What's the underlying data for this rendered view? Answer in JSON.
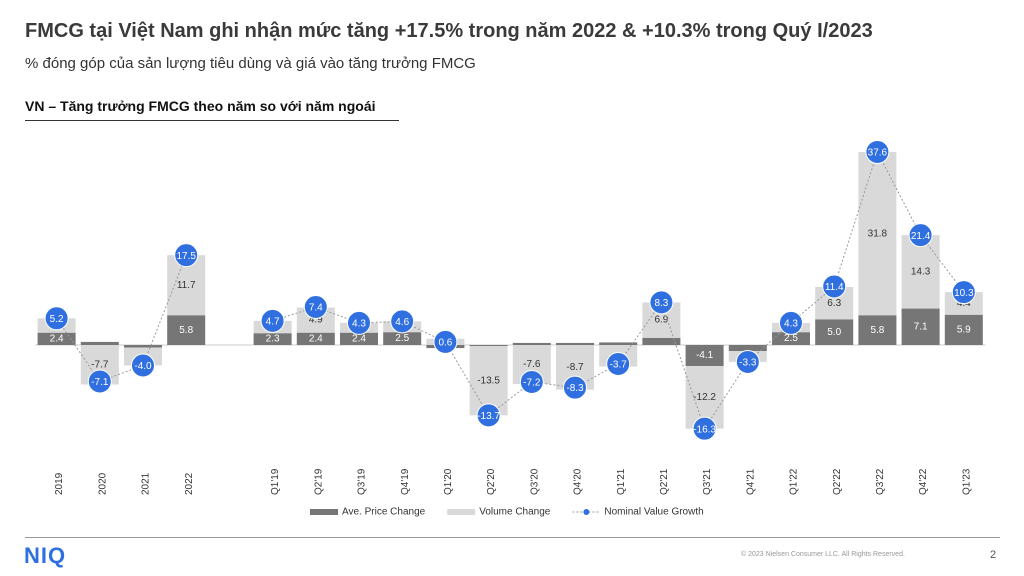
{
  "header": {
    "title": "FMCG tại Việt Nam ghi nhận mức tăng +17.5% trong năm 2022 & +10.3% trong Quý I/2023",
    "subtitle": "% đóng góp của sản lượng tiêu dùng và giá vào tăng trưởng FMCG"
  },
  "chart_data": {
    "type": "bar",
    "stacked": true,
    "title": "VN – Tăng trưởng FMCG theo năm so với năm ngoái",
    "categories": [
      "2019",
      "2020",
      "2021",
      "2022",
      null,
      "Q1'19",
      "Q2'19",
      "Q3'19",
      "Q4'19",
      "Q1'20",
      "Q2'20",
      "Q3'20",
      "Q4'20",
      "Q1'21",
      "Q2'21",
      "Q3'21",
      "Q4'21",
      "Q1'22",
      "Q2'22",
      "Q3'22",
      "Q4'22",
      "Q1'23"
    ],
    "series": [
      {
        "name": "Ave. Price Change",
        "type": "bar",
        "color": "#767676",
        "values": [
          2.4,
          0.6,
          -0.5,
          5.8,
          null,
          2.3,
          2.4,
          2.4,
          2.5,
          -0.6,
          -0.2,
          0.4,
          0.4,
          0.5,
          1.4,
          -4.1,
          -1.2,
          2.5,
          5.0,
          5.8,
          7.1,
          5.9
        ],
        "value_labels": [
          "2.4",
          null,
          null,
          "5.8",
          null,
          "2.3",
          "2.4",
          "2.4",
          "2.5",
          null,
          null,
          null,
          null,
          null,
          null,
          "-4.1",
          null,
          "2.5",
          "5.0",
          "5.8",
          "7.1",
          "5.9"
        ]
      },
      {
        "name": "Volume Change",
        "type": "bar",
        "color": "#d9d9d9",
        "values": [
          2.8,
          -7.7,
          -3.5,
          11.7,
          null,
          2.4,
          4.9,
          1.9,
          2.1,
          1.2,
          -13.5,
          -7.6,
          -8.7,
          -4.2,
          6.9,
          -12.2,
          -2.1,
          1.8,
          6.3,
          31.8,
          14.3,
          4.4
        ],
        "value_labels": [
          null,
          "-7.7",
          null,
          "11.7",
          null,
          null,
          "4.9",
          null,
          null,
          null,
          "-13.5",
          "-7.6",
          "-8.7",
          null,
          "6.9",
          "-12.2",
          null,
          null,
          "6.3",
          "31.8",
          "14.3",
          "4.4"
        ]
      },
      {
        "name": "Nominal Value Growth",
        "type": "line",
        "color": "#2f6fe0",
        "values": [
          5.2,
          -7.1,
          -4.0,
          17.5,
          null,
          4.7,
          7.4,
          4.3,
          4.6,
          0.6,
          -13.7,
          -7.2,
          -8.3,
          -3.7,
          8.3,
          -16.3,
          -3.3,
          4.3,
          11.4,
          37.6,
          21.4,
          10.3
        ],
        "value_labels": [
          "5.2",
          "-7.1",
          "-4.0",
          "17.5",
          null,
          "4.7",
          "7.4",
          "4.3",
          "4.6",
          "0.6",
          "-13.7",
          "-7.2",
          "-8.3",
          "-3.7",
          "8.3",
          "-16.3",
          "-3.3",
          "4.3",
          "11.4",
          "37.6",
          "21.4",
          "10.3"
        ]
      }
    ],
    "legend": "bottom"
  },
  "footer": {
    "logo": "NIQ",
    "copyright": "© 2023 Nielsen Consumer LLC. All Rights Reserved.",
    "page": 2
  }
}
